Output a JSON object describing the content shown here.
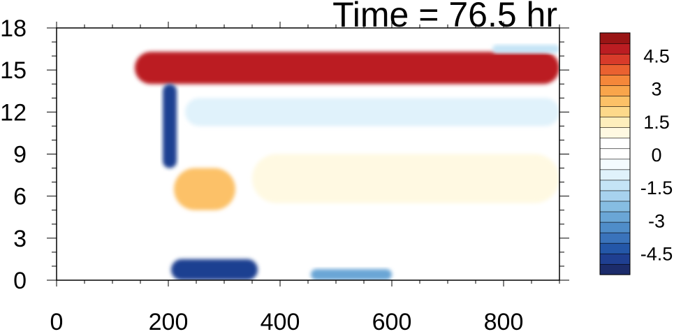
{
  "title": "Time = 76.5 hr",
  "chart_data": {
    "type": "heatmap",
    "title": "Time = 76.5 hr",
    "xlabel": "",
    "ylabel": "",
    "xlim": [
      0,
      900
    ],
    "ylim": [
      0,
      18
    ],
    "x_ticks": [
      0,
      200,
      400,
      600,
      800
    ],
    "y_ticks": [
      0,
      3,
      6,
      9,
      12,
      15,
      18
    ],
    "colorbar": {
      "levels": [
        -5.5,
        -5,
        -4.5,
        -4,
        -3.5,
        -3,
        -2.5,
        -2,
        -1.5,
        -1,
        -0.5,
        0,
        0.5,
        1,
        1.5,
        2,
        2.5,
        3,
        3.5,
        4,
        4.5,
        5,
        5.5
      ],
      "tick_labels": [
        "4.5",
        "3",
        "1.5",
        "0",
        "-1.5",
        "-3",
        "-4.5"
      ],
      "tick_values": [
        4.5,
        3,
        1.5,
        0,
        -1.5,
        -3,
        -4.5
      ],
      "colors": [
        "#1c2c6b",
        "#1f3f91",
        "#2457a8",
        "#3a73bb",
        "#4f8dc9",
        "#6aa6d6",
        "#86bde2",
        "#a7d2ee",
        "#c4e4f6",
        "#e0f2fb",
        "#f4fbfe",
        "#ffffff",
        "#ffffff",
        "#fff9e2",
        "#feeebc",
        "#fdd98a",
        "#fcc167",
        "#f9a54b",
        "#f5873a",
        "#ea6130",
        "#d83b2a",
        "#bb1d22",
        "#9a1515"
      ]
    },
    "features": [
      {
        "label": "upper warm band",
        "x": [
          140,
          900
        ],
        "y": [
          14,
          16.3
        ],
        "value": 5.2
      },
      {
        "label": "cold streak",
        "x": [
          190,
          215
        ],
        "y": [
          8,
          14
        ],
        "value": -5
      },
      {
        "label": "surface cold pool",
        "x": [
          205,
          360
        ],
        "y": [
          0,
          1.5
        ],
        "value": -5
      },
      {
        "label": "surface cold pool 2",
        "x": [
          455,
          600
        ],
        "y": [
          0,
          0.8
        ],
        "value": -3
      },
      {
        "label": "mid warm patch",
        "x": [
          210,
          320
        ],
        "y": [
          5,
          8
        ],
        "value": 2.5
      },
      {
        "label": "mid warm region",
        "x": [
          350,
          900
        ],
        "y": [
          5.5,
          9
        ],
        "value": 1
      },
      {
        "label": "cool layer",
        "x": [
          230,
          900
        ],
        "y": [
          11,
          13
        ],
        "value": -1
      },
      {
        "label": "top cool layer",
        "x": [
          780,
          900
        ],
        "y": [
          16.2,
          16.8
        ],
        "value": -1.5
      }
    ]
  }
}
